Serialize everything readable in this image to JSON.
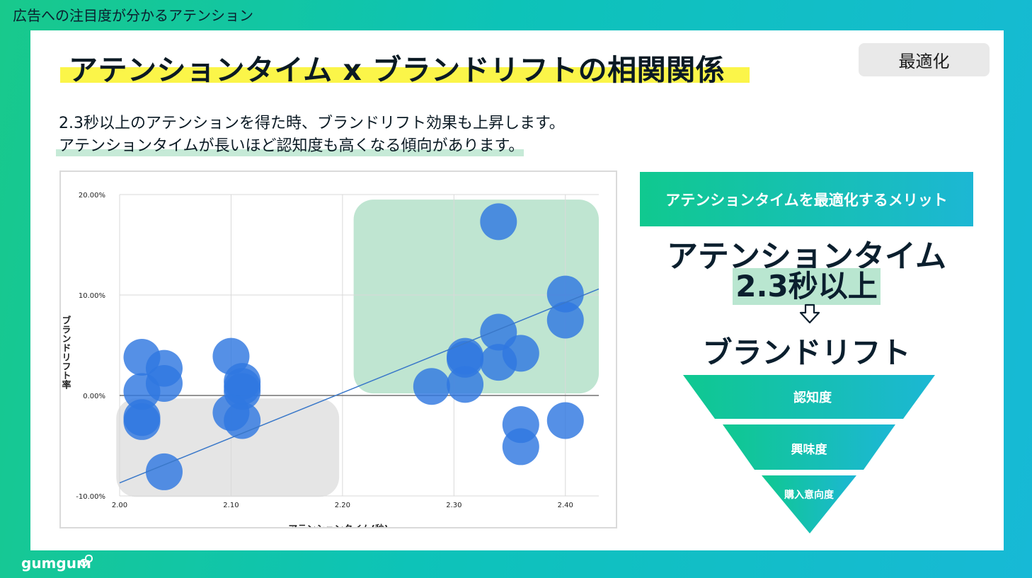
{
  "header": {
    "top_label": "広告への注目度が分かるアテンション"
  },
  "slide": {
    "title": "アテンションタイム x ブランドリフトの相関関係",
    "badge": "最適化",
    "description": {
      "line1": "2.3秒以上のアテンションを得た時、ブランドリフト効果も上昇します。",
      "line2": "アテンションタイムが長いほど認知度も高くなる傾向があります。"
    }
  },
  "right_panel": {
    "banner": "アテンションタイムを最適化するメリット",
    "headline1": "アテンションタイム",
    "headline2": "2.3秒以上",
    "headline3": "ブランドリフト",
    "funnel": [
      "認知度",
      "興味度",
      "購入意向度"
    ]
  },
  "chart_data": {
    "type": "scatter",
    "xlabel": "アテンションタイム(秒)",
    "ylabel": "ブランドリフト率",
    "x_ticks": [
      "2.00",
      "2.10",
      "2.20",
      "2.30",
      "2.40"
    ],
    "y_ticks": [
      "20.00%",
      "10.00%",
      "0.00%",
      "-10.00%"
    ],
    "xlim": [
      2.0,
      2.43
    ],
    "ylim": [
      -10,
      20
    ],
    "grid": true,
    "trendline": {
      "from": [
        2.0,
        -8.7
      ],
      "to": [
        2.43,
        10.6
      ]
    },
    "highlight_regions": [
      {
        "x": [
          2.21,
          2.43
        ],
        "y": [
          0.2,
          19.5
        ],
        "color": "#bfe5d1"
      },
      {
        "x": [
          1.997,
          2.197
        ],
        "y": [
          -10.1,
          -0.3
        ],
        "color": "#e5e5e5"
      }
    ],
    "points": [
      {
        "x": 2.02,
        "y": 3.8
      },
      {
        "x": 2.02,
        "y": 0.4
      },
      {
        "x": 2.04,
        "y": 2.7
      },
      {
        "x": 2.04,
        "y": 1.2
      },
      {
        "x": 2.02,
        "y": -2.2
      },
      {
        "x": 2.02,
        "y": -2.6
      },
      {
        "x": 2.04,
        "y": -7.6
      },
      {
        "x": 2.1,
        "y": 3.9
      },
      {
        "x": 2.11,
        "y": 1.4
      },
      {
        "x": 2.11,
        "y": 0.9
      },
      {
        "x": 2.11,
        "y": 0.4
      },
      {
        "x": 2.1,
        "y": -1.7
      },
      {
        "x": 2.11,
        "y": -2.5
      },
      {
        "x": 2.34,
        "y": 17.3
      },
      {
        "x": 2.4,
        "y": 10.1
      },
      {
        "x": 2.4,
        "y": 7.5
      },
      {
        "x": 2.34,
        "y": 6.3
      },
      {
        "x": 2.36,
        "y": 4.2
      },
      {
        "x": 2.34,
        "y": 3.3
      },
      {
        "x": 2.31,
        "y": 3.6
      },
      {
        "x": 2.31,
        "y": 3.9
      },
      {
        "x": 2.31,
        "y": 1.1
      },
      {
        "x": 2.28,
        "y": 0.9
      },
      {
        "x": 2.36,
        "y": -2.9
      },
      {
        "x": 2.36,
        "y": -5.1
      },
      {
        "x": 2.4,
        "y": -2.5
      }
    ],
    "point_color": "#2f78e0"
  },
  "logo": {
    "text": "gumgum"
  }
}
